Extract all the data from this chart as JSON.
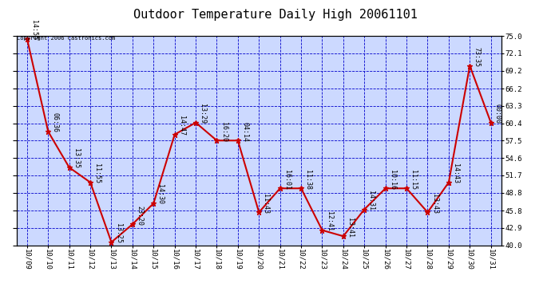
{
  "title": "Outdoor Temperature Daily High 20061101",
  "copyright_text": "Copyright 2006 Castronics.com",
  "x_labels": [
    "10/09",
    "10/10",
    "10/11",
    "10/12",
    "10/13",
    "10/14",
    "10/15",
    "10/16",
    "10/17",
    "10/18",
    "10/19",
    "10/20",
    "10/21",
    "10/22",
    "10/23",
    "10/24",
    "10/25",
    "10/26",
    "10/27",
    "10/28",
    "10/29",
    "10/30",
    "10/31"
  ],
  "y_values": [
    74.5,
    59.0,
    53.0,
    50.5,
    40.5,
    43.5,
    47.0,
    58.5,
    60.5,
    57.5,
    57.5,
    45.5,
    49.5,
    49.5,
    42.5,
    41.5,
    46.0,
    49.5,
    49.5,
    45.5,
    50.5,
    70.0,
    60.5
  ],
  "point_labels": [
    "14:55",
    "06:36",
    "13:35",
    "11:55",
    "13:25",
    "23:20",
    "14:30",
    "14:47",
    "13:29",
    "16:20",
    "04:14",
    "11:43",
    "16:01",
    "11:38",
    "12:41",
    "13:41",
    "14:31",
    "10:16",
    "11:15",
    "13:43",
    "14:43",
    "73:35",
    "00:00"
  ],
  "ylim_min": 40.0,
  "ylim_max": 75.0,
  "yticks": [
    40.0,
    42.9,
    45.8,
    48.8,
    51.7,
    54.6,
    57.5,
    60.4,
    63.3,
    66.2,
    69.2,
    72.1,
    75.0
  ],
  "line_color": "#cc0000",
  "marker_color": "#cc0000",
  "bg_color": "#ccd9ff",
  "plot_bg_color": "#ccd9ff",
  "grid_color": "#0000cc",
  "title_fontsize": 11,
  "label_fontsize": 6.5,
  "point_label_fontsize": 6,
  "marker_size": 5,
  "line_width": 1.5
}
